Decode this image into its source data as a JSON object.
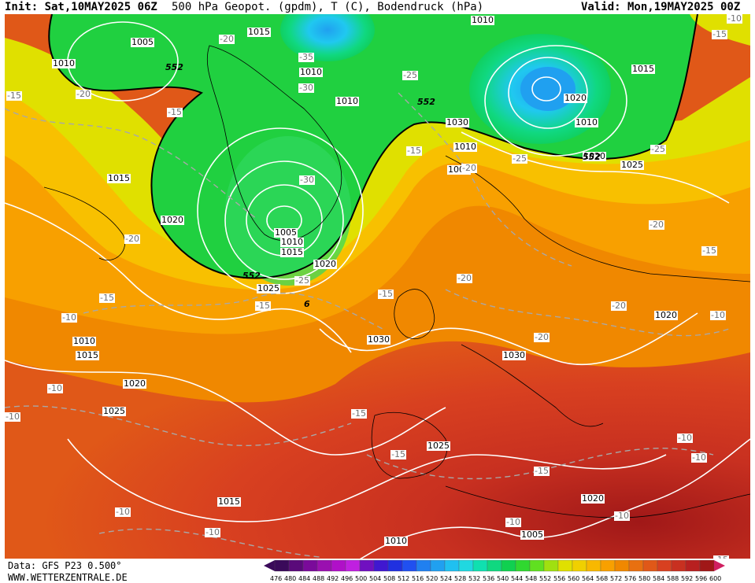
{
  "header": {
    "init": "Init: Sat,10MAY2025 06Z",
    "title": "500 hPa Geopot. (gpdm), T (C), Bodendruck (hPa)",
    "valid": "Valid: Mon,19MAY2025 00Z"
  },
  "footer": {
    "source": "Data: GFS P23 0.500°",
    "site": "WWW.WETTERZENTRALE.DE"
  },
  "colorscale": {
    "levels": [
      "476",
      "480",
      "484",
      "488",
      "492",
      "496",
      "500",
      "504",
      "508",
      "512",
      "516",
      "520",
      "524",
      "528",
      "532",
      "536",
      "540",
      "544",
      "548",
      "552",
      "556",
      "560",
      "564",
      "568",
      "572",
      "576",
      "580",
      "584",
      "588",
      "592",
      "596",
      "600"
    ],
    "colors": [
      "#3a0a5a",
      "#5a0a7a",
      "#7a0a9a",
      "#9a10b0",
      "#b010c8",
      "#c020e0",
      "#7010c0",
      "#4018d0",
      "#2030e0",
      "#2050f0",
      "#2080f0",
      "#20a0f0",
      "#20c0f0",
      "#20d8e0",
      "#10e0b0",
      "#10d880",
      "#10d050",
      "#30d830",
      "#60e020",
      "#a0e010",
      "#e0e000",
      "#f0d000",
      "#f8b800",
      "#f8a000",
      "#f08800",
      "#e87010",
      "#e05818",
      "#d84020",
      "#c83020",
      "#b82020",
      "#a01818",
      "#d02060"
    ]
  },
  "map": {
    "geopot_contour_labels": [
      "552",
      "552",
      "552",
      "552",
      "6"
    ],
    "pressure_labels": [
      "1005",
      "1010",
      "1015",
      "1010",
      "1010",
      "1015",
      "1020",
      "1005",
      "1010",
      "1015",
      "1020",
      "1025",
      "1030",
      "1010",
      "1015",
      "1020",
      "1025",
      "1030",
      "1010",
      "1005",
      "1010",
      "1015",
      "1020",
      "1010",
      "1020",
      "1025",
      "1020",
      "1030",
      "1025",
      "1020",
      "1015",
      "1010",
      "1005"
    ],
    "temp_labels": [
      "-15",
      "-20",
      "-15",
      "-20",
      "-35",
      "-30",
      "-25",
      "-15",
      "-30",
      "-20",
      "-15",
      "-25",
      "-15",
      "-15",
      "-10",
      "-10",
      "-15",
      "-20",
      "-20",
      "-25",
      "-25",
      "-20",
      "-15",
      "-20",
      "-20",
      "-10",
      "-10",
      "-10",
      "-10",
      "-15",
      "-10",
      "-15",
      "-10",
      "-10",
      "-10",
      "-15",
      "-15",
      "-10"
    ]
  }
}
